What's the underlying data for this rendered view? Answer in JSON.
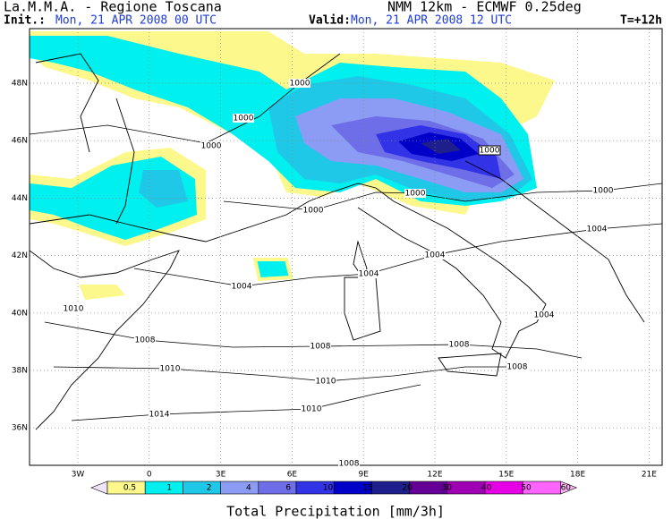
{
  "header": {
    "title": "La.M.M.A. - Regione Toscana",
    "model": "NMM 12km - ECMWF 0.25deg",
    "init_label": "Init.:",
    "init": "Mon, 21 APR 2008 00 UTC",
    "valid_label": "Valid:",
    "valid": "Mon, 21 APR 2008 12 UTC",
    "step": "T=+12h"
  },
  "map": {
    "lat_labels": [
      "48N",
      "46N",
      "44N",
      "42N",
      "40N",
      "38N",
      "36N"
    ],
    "lon_labels": [
      "3W",
      "0",
      "3E",
      "6E",
      "9E",
      "12E",
      "15E",
      "18E",
      "21E"
    ],
    "isobar_labels": [
      "1000",
      "1000",
      "1000",
      "1000",
      "1000",
      "1000",
      "1000",
      "1004",
      "1004",
      "1004",
      "1004",
      "1004",
      "1010",
      "1008",
      "1008",
      "1008",
      "1008",
      "1010",
      "1010",
      "1010",
      "1014",
      "1008"
    ]
  },
  "colorbar": {
    "labels": [
      "0.5",
      "1",
      "2",
      "4",
      "6",
      "10",
      "15",
      "20",
      "30",
      "40",
      "50",
      "60"
    ],
    "colors": [
      "#f0e4fa",
      "#fcf88c",
      "#00f0f0",
      "#20c8e8",
      "#8c9cf4",
      "#6e6ee8",
      "#3232e6",
      "#0000c8",
      "#1e1e8c",
      "#640096",
      "#a000b4",
      "#e600e6",
      "#ff64ff",
      "#f8b4f0"
    ],
    "title": "Total Precipitation [mm/3h]"
  }
}
